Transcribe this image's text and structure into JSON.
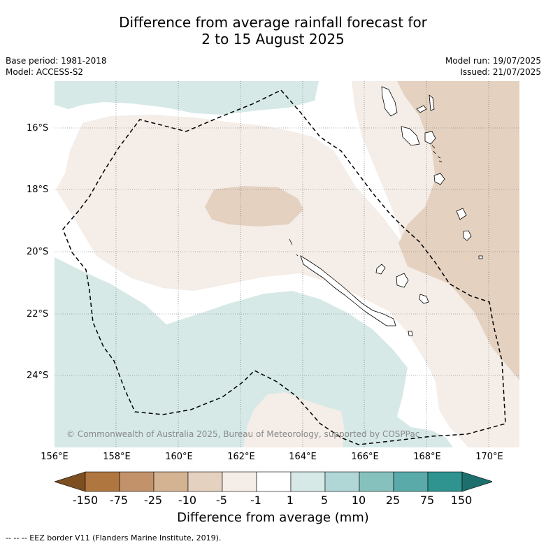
{
  "title": {
    "line1": "Difference from average rainfall forecast for",
    "line2": "2 to 15 August 2025"
  },
  "meta_left": {
    "base_period": "Base period: 1981-2018",
    "model": "Model: ACCESS-S2"
  },
  "meta_right": {
    "model_run": "Model run: 19/07/2025",
    "issued": "Issued: 21/07/2025"
  },
  "map": {
    "lat_labels": [
      "16°S",
      "18°S",
      "20°S",
      "22°S",
      "24°S"
    ],
    "lon_labels": [
      "156°E",
      "158°E",
      "160°E",
      "162°E",
      "164°E",
      "166°E",
      "168°E",
      "170°E"
    ],
    "copyright": "© Commonwealth of Australia 2025, Bureau of Meteorology, supported by COSPPac",
    "colors": {
      "dry_light": "#f4ede8",
      "dry_mid": "#e4d1c0",
      "wet_light": "#d6e9e7",
      "neutral": "#ffffff",
      "coast": "#000000"
    }
  },
  "colorbar": {
    "labels": [
      "-150",
      "-75",
      "-25",
      "-10",
      "-5",
      "-1",
      "1",
      "5",
      "10",
      "25",
      "75",
      "150"
    ],
    "colors": [
      "#7d4e20",
      "#af7640",
      "#c2926a",
      "#d4b393",
      "#e4d1c0",
      "#f4ede8",
      "#ffffff",
      "#d6e9e7",
      "#b0d6d5",
      "#86c1be",
      "#59aaa8",
      "#2f938f",
      "#1c6f6d"
    ],
    "title": "Difference from average (mm)"
  },
  "footer": "--  --  -- EEZ border V11 (Flanders Marine Institute, 2019)."
}
